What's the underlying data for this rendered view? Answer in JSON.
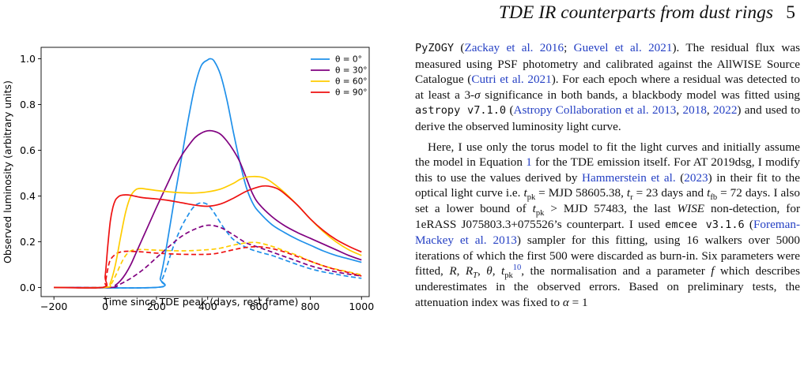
{
  "header": {
    "running_title": "TDE IR counterparts from dust rings",
    "page_number": "5"
  },
  "chart_data": {
    "type": "line",
    "xlabel": "Time since TDE peak (days, rest frame)",
    "ylabel": "Observed luminosity (arbitrary units)",
    "xlim": [
      -250,
      1030
    ],
    "ylim": [
      -0.04,
      1.05
    ],
    "xticks": [
      -200,
      0,
      200,
      400,
      600,
      800,
      1000
    ],
    "yticks": [
      0.0,
      0.2,
      0.4,
      0.6,
      0.8,
      1.0
    ],
    "xtick_labels": [
      "−200",
      "0",
      "200",
      "400",
      "600",
      "800",
      "1000"
    ],
    "ytick_labels": [
      "0.0",
      "0.2",
      "0.4",
      "0.6",
      "0.8",
      "1.0"
    ],
    "grid": false,
    "legend_position": "top-right",
    "colors": {
      "theta0": "#1f90ea",
      "theta30": "#800080",
      "theta60": "#ffcc00",
      "theta90": "#ee1111"
    },
    "series": [
      {
        "name": "θ = 0°",
        "color": "#1f90ea",
        "style": "solid",
        "x": [
          -200,
          200,
          215,
          230,
          250,
          275,
          300,
          325,
          350,
          375,
          400,
          410,
          425,
          450,
          475,
          500,
          525,
          550,
          575,
          600,
          650,
          700,
          750,
          800,
          850,
          900,
          950,
          1000
        ],
        "y": [
          0.0,
          0.0,
          0.04,
          0.12,
          0.25,
          0.42,
          0.58,
          0.74,
          0.88,
          0.97,
          0.995,
          1.0,
          0.99,
          0.93,
          0.82,
          0.68,
          0.55,
          0.44,
          0.37,
          0.33,
          0.275,
          0.24,
          0.21,
          0.185,
          0.16,
          0.14,
          0.125,
          0.11
        ]
      },
      {
        "name": "θ = 30°",
        "color": "#800080",
        "style": "solid",
        "x": [
          -200,
          20,
          40,
          60,
          80,
          100,
          120,
          140,
          160,
          180,
          200,
          225,
          250,
          275,
          300,
          325,
          350,
          375,
          400,
          425,
          450,
          475,
          500,
          525,
          550,
          575,
          600,
          650,
          700,
          750,
          800,
          850,
          900,
          950,
          1000
        ],
        "y": [
          0.0,
          0.0,
          0.01,
          0.03,
          0.06,
          0.1,
          0.15,
          0.2,
          0.25,
          0.3,
          0.35,
          0.41,
          0.47,
          0.53,
          0.58,
          0.62,
          0.655,
          0.675,
          0.685,
          0.683,
          0.67,
          0.64,
          0.6,
          0.55,
          0.48,
          0.41,
          0.365,
          0.31,
          0.27,
          0.24,
          0.215,
          0.19,
          0.165,
          0.14,
          0.12
        ]
      },
      {
        "name": "θ = 60°",
        "color": "#ffcc00",
        "style": "solid",
        "x": [
          -200,
          0,
          20,
          40,
          60,
          80,
          100,
          120,
          140,
          160,
          200,
          250,
          300,
          350,
          400,
          450,
          500,
          525,
          550,
          575,
          600,
          625,
          650,
          700,
          750,
          800,
          850,
          900,
          950,
          1000
        ],
        "y": [
          0.0,
          0.0,
          0.02,
          0.1,
          0.22,
          0.33,
          0.4,
          0.428,
          0.433,
          0.43,
          0.424,
          0.418,
          0.414,
          0.413,
          0.418,
          0.43,
          0.455,
          0.472,
          0.482,
          0.485,
          0.484,
          0.477,
          0.46,
          0.415,
          0.36,
          0.3,
          0.245,
          0.2,
          0.165,
          0.14
        ]
      },
      {
        "name": "θ = 90°",
        "color": "#ee1111",
        "style": "solid",
        "x": [
          -200,
          -10,
          0,
          10,
          20,
          30,
          40,
          50,
          60,
          80,
          100,
          120,
          150,
          200,
          250,
          300,
          350,
          400,
          450,
          500,
          550,
          600,
          625,
          650,
          675,
          700,
          750,
          800,
          850,
          900,
          950,
          1000
        ],
        "y": [
          0.0,
          0.0,
          0.05,
          0.18,
          0.29,
          0.35,
          0.382,
          0.395,
          0.402,
          0.405,
          0.403,
          0.398,
          0.392,
          0.387,
          0.38,
          0.37,
          0.36,
          0.355,
          0.365,
          0.39,
          0.42,
          0.44,
          0.444,
          0.44,
          0.43,
          0.41,
          0.36,
          0.3,
          0.25,
          0.21,
          0.18,
          0.155
        ]
      },
      {
        "name": "",
        "color": "#1f90ea",
        "style": "dashed",
        "x": [
          -200,
          200,
          220,
          240,
          260,
          280,
          300,
          320,
          340,
          360,
          380,
          400,
          420,
          440,
          460,
          480,
          500,
          550,
          600,
          650,
          700,
          750,
          800,
          850,
          900,
          950,
          1000
        ],
        "y": [
          0.0,
          0.0,
          0.03,
          0.09,
          0.16,
          0.22,
          0.27,
          0.31,
          0.345,
          0.365,
          0.37,
          0.362,
          0.335,
          0.3,
          0.265,
          0.235,
          0.21,
          0.175,
          0.155,
          0.14,
          0.12,
          0.1,
          0.082,
          0.068,
          0.058,
          0.048,
          0.04
        ]
      },
      {
        "name": "",
        "color": "#800080",
        "style": "dashed",
        "x": [
          -200,
          20,
          50,
          100,
          150,
          200,
          250,
          300,
          350,
          400,
          450,
          500,
          550,
          600,
          650,
          700,
          750,
          800,
          850,
          900,
          950,
          1000
        ],
        "y": [
          0.0,
          0.0,
          0.01,
          0.04,
          0.08,
          0.13,
          0.18,
          0.225,
          0.255,
          0.272,
          0.262,
          0.23,
          0.195,
          0.175,
          0.155,
          0.135,
          0.115,
          0.095,
          0.08,
          0.068,
          0.058,
          0.05
        ]
      },
      {
        "name": "",
        "color": "#ffcc00",
        "style": "dashed",
        "x": [
          -200,
          0,
          20,
          40,
          60,
          80,
          100,
          120,
          150,
          200,
          300,
          400,
          450,
          500,
          550,
          575,
          600,
          650,
          700,
          750,
          800,
          850,
          900,
          950,
          1000
        ],
        "y": [
          0.0,
          0.0,
          0.01,
          0.05,
          0.1,
          0.14,
          0.16,
          0.165,
          0.166,
          0.163,
          0.16,
          0.165,
          0.172,
          0.185,
          0.195,
          0.197,
          0.195,
          0.18,
          0.16,
          0.14,
          0.115,
          0.095,
          0.08,
          0.068,
          0.055
        ]
      },
      {
        "name": "",
        "color": "#ee1111",
        "style": "dashed",
        "x": [
          -200,
          -10,
          0,
          10,
          20,
          40,
          60,
          80,
          100,
          150,
          200,
          300,
          400,
          450,
          500,
          550,
          600,
          650,
          700,
          750,
          800,
          850,
          900,
          950,
          1000
        ],
        "y": [
          0.0,
          0.0,
          0.02,
          0.08,
          0.12,
          0.145,
          0.155,
          0.158,
          0.158,
          0.155,
          0.15,
          0.145,
          0.145,
          0.152,
          0.165,
          0.175,
          0.178,
          0.17,
          0.155,
          0.135,
          0.115,
          0.095,
          0.078,
          0.065,
          0.05
        ]
      }
    ]
  },
  "body": {
    "p1": {
      "t1": "PyZOGY",
      "t2": " (",
      "c1": "Zackay et al. 2016",
      "t3": "; ",
      "c2": "Guevel et al. 2021",
      "t4": "). The residual flux was measured using PSF photometry and calibrated against the AllWISE Source Catalogue (",
      "c3": "Cutri et al. 2021",
      "t5": "). For each epoch where a residual was detected to at least a 3-",
      "sym": "σ",
      "t6": " significance in both bands, a blackbody model was fitted using ",
      "code": "astropy v7.1.0",
      "t7": " (",
      "c4": "Astropy Collaboration et al. 2013",
      "t8": ", ",
      "c5": "2018",
      "t9": ", ",
      "c6": "2022",
      "t10": ") and used to derive the observed luminosity light curve."
    },
    "p2": {
      "t1": "Here, I use only the torus model to fit the light curves and initially assume the model in Equation ",
      "eq": "1",
      "t2": " for the TDE emission itself. For AT 2019dsg, I modify this to use the values derived by ",
      "c1": "Hammerstein et al.",
      "t3": " (",
      "c2": "2023",
      "t4": ") in their fit to the optical light curve i.e. ",
      "t_sym": "t",
      "pk": "pk",
      "t5": " = MJD 58605.38, ",
      "r_sym": "t",
      "r_sub": "r",
      "t6": " = 23 days and ",
      "fb_sym": "t",
      "fb_sub": "fb",
      "t7": " = 72 days. I also set a lower bound of ",
      "t8": " > MJD 57483, the last ",
      "wise": "WISE",
      "t9": " non-detection, for 1eRASS J075803.3+075526’s counterpart. I used ",
      "code": "emcee v3.1.6",
      "t10": " (",
      "c3": "Foreman-Mackey et al. 2013",
      "t11": ") sampler for this fitting, using 16 walkers over 5000 iterations of which the first 500 were discarded as burn-in. Six parameters were fitted, ",
      "R": "R",
      "t12": ", ",
      "RT": "R",
      "RT_sub": "T",
      "t13": ", ",
      "theta": "θ",
      "t14": ", ",
      "tpk": "t",
      "tpk_sub": "pk",
      "fn": "10",
      "t15": ", the normalisation and a parameter ",
      "f": "f",
      "t16": " which describes underestimates in the observed errors. Based on preliminary tests, the attenuation index was fixed to ",
      "alpha": "α",
      "t17": " = 1"
    }
  }
}
